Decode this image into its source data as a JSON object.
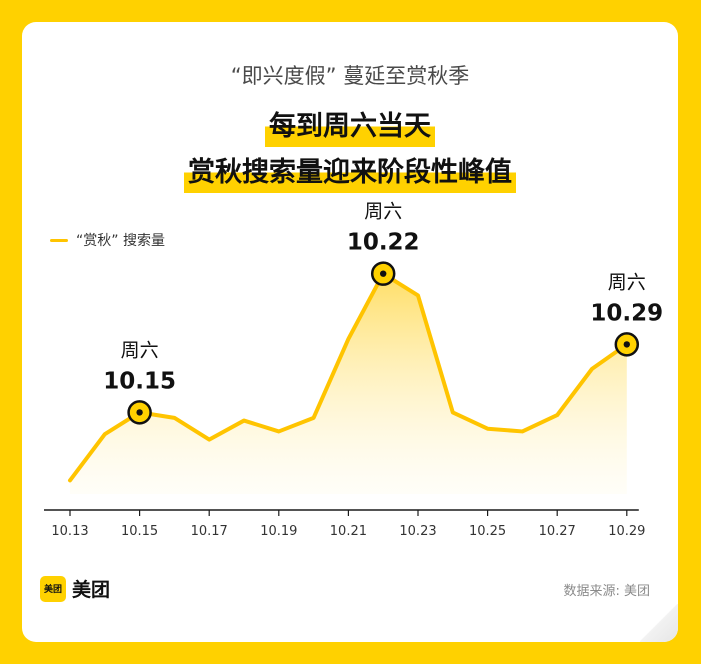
{
  "header": {
    "line1": "“即兴度假” 蔓延至赏秋季",
    "line2": "每到周六当天",
    "line3": "赏秋搜索量迎来阶段性峰值"
  },
  "chart_data": {
    "type": "area",
    "title": "",
    "xlabel": "",
    "ylabel": "",
    "legend_position": "top-left",
    "grid": false,
    "x_ticks": [
      "10.13",
      "10.15",
      "10.17",
      "10.19",
      "10.21",
      "10.23",
      "10.25",
      "10.27",
      "10.29"
    ],
    "ylim": [
      0,
      100
    ],
    "series": [
      {
        "name": "“赏秋” 搜索量",
        "color": "#FFC400",
        "x": [
          "10.13",
          "10.14",
          "10.15",
          "10.16",
          "10.17",
          "10.18",
          "10.19",
          "10.20",
          "10.21",
          "10.22",
          "10.23",
          "10.24",
          "10.25",
          "10.26",
          "10.27",
          "10.28",
          "10.29"
        ],
        "values": [
          5,
          22,
          30,
          28,
          20,
          27,
          23,
          28,
          57,
          81,
          73,
          30,
          24,
          23,
          29,
          46,
          55
        ]
      }
    ],
    "annotations": [
      {
        "x": "10.15",
        "day": "周六",
        "date": "10.15"
      },
      {
        "x": "10.22",
        "day": "周六",
        "date": "10.22"
      },
      {
        "x": "10.29",
        "day": "周六",
        "date": "10.29"
      }
    ]
  },
  "footer": {
    "logo_badge": "美团",
    "logo_text": "美团",
    "source": "数据来源: 美团"
  }
}
